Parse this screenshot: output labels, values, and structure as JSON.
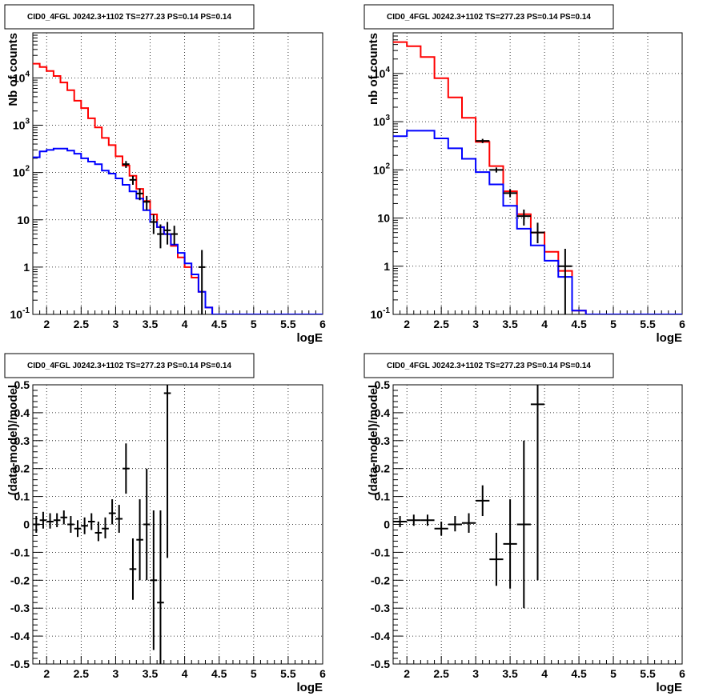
{
  "chart_data": [
    {
      "type": "line",
      "title": "CID0_4FGL J0242.3+1102 TS=277.23 PS=0.14 PS=0.14",
      "xlabel": "logE",
      "ylabel": "Nb of counts",
      "xlim": [
        1.8,
        6.0
      ],
      "ylim": [
        0.1,
        90000
      ],
      "yscale": "log",
      "grid": true,
      "xticks": [
        "2",
        "2.5",
        "3",
        "3.5",
        "4",
        "4.5",
        "5",
        "5.5",
        "6"
      ],
      "yticks": [
        "10^-1",
        "1",
        "10",
        "10^2",
        "10^3",
        "10^4"
      ],
      "series": [
        {
          "color": "#ff0000",
          "kind": "step",
          "edges": [
            1.8,
            1.9,
            2.0,
            2.1,
            2.2,
            2.3,
            2.4,
            2.5,
            2.6,
            2.7,
            2.8,
            2.9,
            3.0,
            3.1,
            3.2,
            3.3,
            3.4,
            3.5,
            3.6,
            3.7,
            3.8,
            3.9,
            4.0,
            4.1,
            4.2,
            4.3,
            4.4,
            4.5,
            4.6,
            4.7,
            4.8,
            4.9,
            5.0,
            5.1,
            5.2,
            5.3,
            5.4,
            5.5,
            5.6,
            5.7,
            5.8,
            5.9,
            6.0
          ],
          "values": [
            20000,
            17000,
            14000,
            11000,
            8000,
            5500,
            3300,
            2300,
            1400,
            900,
            540,
            380,
            220,
            140,
            85,
            45,
            25,
            13,
            7,
            5,
            2.8,
            1.6,
            1.0,
            0.6,
            0.3,
            0.14,
            0.1,
            0.1,
            0.1,
            0.1,
            0.1,
            0.1,
            0.1,
            0.1,
            0.1,
            0.1,
            0.1,
            0.1,
            0.1,
            0.1,
            0.1,
            0.1
          ]
        },
        {
          "color": "#0000ff",
          "kind": "step",
          "edges": [
            1.8,
            1.9,
            2.0,
            2.1,
            2.2,
            2.3,
            2.4,
            2.5,
            2.6,
            2.7,
            2.8,
            2.9,
            3.0,
            3.1,
            3.2,
            3.3,
            3.4,
            3.5,
            3.6,
            3.7,
            3.8,
            3.9,
            4.0,
            4.1,
            4.2,
            4.3,
            4.4,
            4.5,
            4.6,
            4.7,
            4.8,
            4.9,
            5.0,
            5.1,
            5.2,
            5.3,
            5.4,
            5.5,
            5.6,
            5.7,
            5.8,
            5.9,
            6.0
          ],
          "values": [
            210,
            280,
            300,
            320,
            320,
            290,
            250,
            200,
            170,
            150,
            110,
            95,
            75,
            55,
            40,
            28,
            16,
            9,
            7,
            5,
            3,
            2,
            1.2,
            0.7,
            0.3,
            0.14,
            0.1,
            0.1,
            0.1,
            0.1,
            0.1,
            0.1,
            0.1,
            0.1,
            0.1,
            0.1,
            0.1,
            0.1,
            0.1,
            0.1,
            0.1,
            0.1
          ]
        }
      ],
      "points": [
        {
          "x": 3.15,
          "y": 150,
          "xerr": 0.05,
          "ylo": 125,
          "yhi": 175
        },
        {
          "x": 3.25,
          "y": 70,
          "xerr": 0.05,
          "ylo": 55,
          "yhi": 85
        },
        {
          "x": 3.35,
          "y": 36,
          "xerr": 0.05,
          "ylo": 26,
          "yhi": 46
        },
        {
          "x": 3.45,
          "y": 24,
          "xerr": 0.05,
          "ylo": 16,
          "yhi": 32
        },
        {
          "x": 3.55,
          "y": 9,
          "xerr": 0.05,
          "ylo": 5,
          "yhi": 13
        },
        {
          "x": 3.65,
          "y": 5,
          "xerr": 0.05,
          "ylo": 2.5,
          "yhi": 8
        },
        {
          "x": 3.75,
          "y": 6,
          "xerr": 0.05,
          "ylo": 3,
          "yhi": 9
        },
        {
          "x": 3.85,
          "y": 5,
          "xerr": 0.05,
          "ylo": 3,
          "yhi": 7.5
        },
        {
          "x": 4.25,
          "y": 1,
          "xerr": 0.05,
          "ylo": 0.1,
          "yhi": 2.3
        }
      ]
    },
    {
      "type": "line",
      "title": "CID0_4FGL J0242.3+1102 TS=277.23 PS=0.14 PS=0.14",
      "xlabel": "logE",
      "ylabel": "nb of counts",
      "xlim": [
        1.8,
        6.0
      ],
      "ylim": [
        0.1,
        70000
      ],
      "yscale": "log",
      "grid": true,
      "xticks": [
        "2",
        "2.5",
        "3",
        "3.5",
        "4",
        "4.5",
        "5",
        "5.5",
        "6"
      ],
      "yticks": [
        "10^-1",
        "1",
        "10",
        "10^2",
        "10^3",
        "10^4"
      ],
      "series": [
        {
          "color": "#ff0000",
          "kind": "step",
          "edges": [
            1.8,
            2.0,
            2.2,
            2.4,
            2.6,
            2.8,
            3.0,
            3.2,
            3.4,
            3.6,
            3.8,
            4.0,
            4.2,
            4.4,
            4.6,
            4.8,
            5.0,
            5.2,
            5.4,
            5.6,
            5.8,
            6.0
          ],
          "values": [
            45000,
            37000,
            22000,
            8000,
            3200,
            1200,
            380,
            120,
            36,
            12,
            5,
            2,
            0.8,
            0.12,
            0.1,
            0.1,
            0.1,
            0.1,
            0.1,
            0.1,
            0.1
          ]
        },
        {
          "color": "#0000ff",
          "kind": "step",
          "edges": [
            1.8,
            2.0,
            2.2,
            2.4,
            2.6,
            2.8,
            3.0,
            3.2,
            3.4,
            3.6,
            3.8,
            4.0,
            4.2,
            4.4,
            4.6,
            4.8,
            5.0,
            5.2,
            5.4,
            5.6,
            5.8,
            6.0
          ],
          "values": [
            500,
            650,
            650,
            450,
            280,
            170,
            90,
            50,
            18,
            6,
            2.7,
            1.3,
            0.6,
            0.12,
            0.1,
            0.1,
            0.1,
            0.1,
            0.1,
            0.1,
            0.1
          ]
        }
      ],
      "points": [
        {
          "x": 3.1,
          "y": 400,
          "xerr": 0.1,
          "ylo": 360,
          "yhi": 440
        },
        {
          "x": 3.3,
          "y": 100,
          "xerr": 0.1,
          "ylo": 88,
          "yhi": 112
        },
        {
          "x": 3.5,
          "y": 33,
          "xerr": 0.1,
          "ylo": 27,
          "yhi": 40
        },
        {
          "x": 3.7,
          "y": 11,
          "xerr": 0.1,
          "ylo": 7,
          "yhi": 15
        },
        {
          "x": 3.9,
          "y": 5,
          "xerr": 0.1,
          "ylo": 3,
          "yhi": 8
        },
        {
          "x": 4.3,
          "y": 1,
          "xerr": 0.1,
          "ylo": 0.1,
          "yhi": 2.3
        }
      ]
    },
    {
      "type": "scatter",
      "title": "CID0_4FGL J0242.3+1102 TS=277.23 PS=0.14 PS=0.14",
      "xlabel": "logE",
      "ylabel": "(data-model)/model",
      "xlim": [
        1.8,
        6.0
      ],
      "ylim": [
        -0.5,
        0.5
      ],
      "grid": true,
      "xticks": [
        "2",
        "2.5",
        "3",
        "3.5",
        "4",
        "4.5",
        "5",
        "5.5",
        "6"
      ],
      "yticks": [
        "-0.5",
        "-0.4",
        "-0.3",
        "-0.2",
        "-0.1",
        "0",
        "0.1",
        "0.2",
        "0.3",
        "0.4",
        "0.5"
      ],
      "points": [
        {
          "x": 1.85,
          "y": 0.0,
          "xerr": 0.05,
          "ylo": -0.03,
          "yhi": 0.03
        },
        {
          "x": 1.95,
          "y": 0.015,
          "xerr": 0.05,
          "ylo": -0.015,
          "yhi": 0.045
        },
        {
          "x": 2.05,
          "y": 0.01,
          "xerr": 0.05,
          "ylo": -0.015,
          "yhi": 0.04
        },
        {
          "x": 2.15,
          "y": 0.015,
          "xerr": 0.05,
          "ylo": -0.01,
          "yhi": 0.04
        },
        {
          "x": 2.25,
          "y": 0.025,
          "xerr": 0.05,
          "ylo": 0.0,
          "yhi": 0.05
        },
        {
          "x": 2.35,
          "y": 0.0,
          "xerr": 0.05,
          "ylo": -0.03,
          "yhi": 0.03
        },
        {
          "x": 2.45,
          "y": -0.015,
          "xerr": 0.05,
          "ylo": -0.045,
          "yhi": 0.015
        },
        {
          "x": 2.55,
          "y": -0.005,
          "xerr": 0.05,
          "ylo": -0.035,
          "yhi": 0.025
        },
        {
          "x": 2.65,
          "y": 0.01,
          "xerr": 0.05,
          "ylo": -0.02,
          "yhi": 0.04
        },
        {
          "x": 2.75,
          "y": -0.03,
          "xerr": 0.05,
          "ylo": -0.06,
          "yhi": 0.01
        },
        {
          "x": 2.85,
          "y": -0.015,
          "xerr": 0.05,
          "ylo": -0.05,
          "yhi": 0.025
        },
        {
          "x": 2.95,
          "y": 0.04,
          "xerr": 0.05,
          "ylo": 0.0,
          "yhi": 0.09
        },
        {
          "x": 3.05,
          "y": 0.02,
          "xerr": 0.05,
          "ylo": -0.03,
          "yhi": 0.07
        },
        {
          "x": 3.15,
          "y": 0.2,
          "xerr": 0.05,
          "ylo": 0.11,
          "yhi": 0.29
        },
        {
          "x": 3.25,
          "y": -0.16,
          "xerr": 0.05,
          "ylo": -0.27,
          "yhi": -0.05
        },
        {
          "x": 3.35,
          "y": -0.055,
          "xerr": 0.05,
          "ylo": -0.2,
          "yhi": 0.09
        },
        {
          "x": 3.45,
          "y": 0.0,
          "xerr": 0.05,
          "ylo": -0.2,
          "yhi": 0.2
        },
        {
          "x": 3.55,
          "y": -0.2,
          "xerr": 0.05,
          "ylo": -0.45,
          "yhi": 0.05
        },
        {
          "x": 3.65,
          "y": -0.28,
          "xerr": 0.05,
          "ylo": -0.5,
          "yhi": 0.05
        },
        {
          "x": 3.75,
          "y": 0.47,
          "xerr": 0.05,
          "ylo": -0.12,
          "yhi": 0.5
        }
      ]
    },
    {
      "type": "scatter",
      "title": "CID0_4FGL J0242.3+1102 TS=277.23 PS=0.14 PS=0.14",
      "xlabel": "logE",
      "ylabel": "(data-model)/model",
      "xlim": [
        1.8,
        6.0
      ],
      "ylim": [
        -0.5,
        0.5
      ],
      "grid": true,
      "xticks": [
        "2",
        "2.5",
        "3",
        "3.5",
        "4",
        "4.5",
        "5",
        "5.5",
        "6"
      ],
      "yticks": [
        "-0.5",
        "-0.4",
        "-0.3",
        "-0.2",
        "-0.1",
        "0",
        "0.1",
        "0.2",
        "0.3",
        "0.4",
        "0.5"
      ],
      "points": [
        {
          "x": 1.9,
          "y": 0.01,
          "xerr": 0.1,
          "ylo": -0.01,
          "yhi": 0.03
        },
        {
          "x": 2.1,
          "y": 0.015,
          "xerr": 0.1,
          "ylo": -0.005,
          "yhi": 0.035
        },
        {
          "x": 2.3,
          "y": 0.015,
          "xerr": 0.1,
          "ylo": -0.005,
          "yhi": 0.035
        },
        {
          "x": 2.5,
          "y": -0.015,
          "xerr": 0.1,
          "ylo": -0.04,
          "yhi": 0.01
        },
        {
          "x": 2.7,
          "y": 0.0,
          "xerr": 0.1,
          "ylo": -0.025,
          "yhi": 0.03
        },
        {
          "x": 2.9,
          "y": 0.005,
          "xerr": 0.1,
          "ylo": -0.03,
          "yhi": 0.04
        },
        {
          "x": 3.1,
          "y": 0.085,
          "xerr": 0.1,
          "ylo": 0.03,
          "yhi": 0.14
        },
        {
          "x": 3.3,
          "y": -0.125,
          "xerr": 0.1,
          "ylo": -0.22,
          "yhi": -0.03
        },
        {
          "x": 3.5,
          "y": -0.07,
          "xerr": 0.1,
          "ylo": -0.23,
          "yhi": 0.09
        },
        {
          "x": 3.7,
          "y": 0.0,
          "xerr": 0.1,
          "ylo": -0.3,
          "yhi": 0.3
        },
        {
          "x": 3.9,
          "y": 0.43,
          "xerr": 0.1,
          "ylo": -0.2,
          "yhi": 0.5
        }
      ]
    }
  ]
}
